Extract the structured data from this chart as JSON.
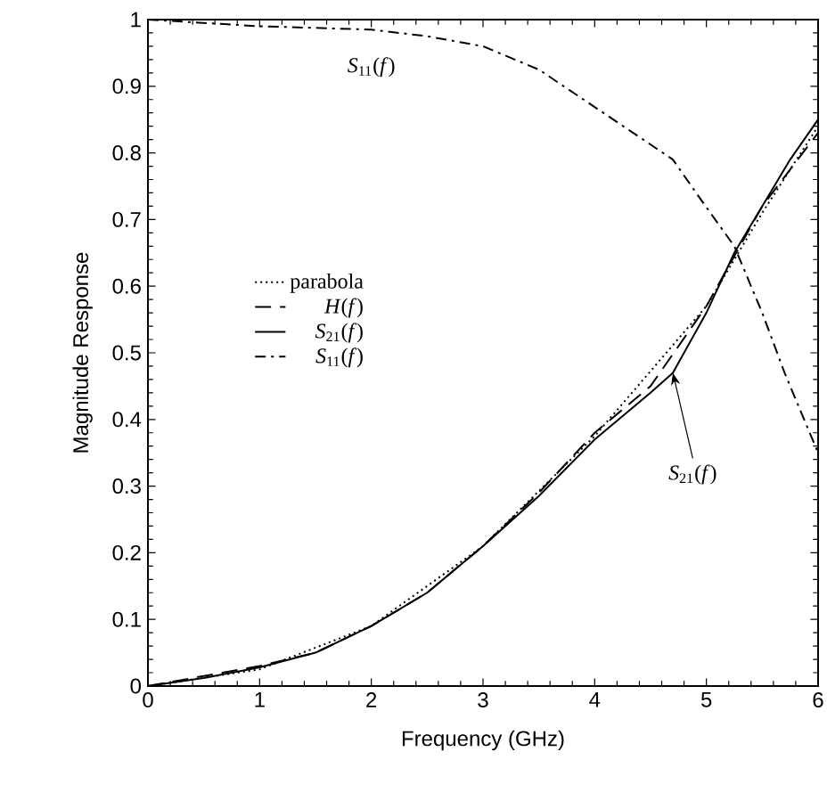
{
  "chart_data": {
    "type": "line",
    "xlabel": "Frequency (GHz)",
    "ylabel": "Magnitude Response",
    "xlim": [
      0,
      6
    ],
    "ylim": [
      0,
      1
    ],
    "xticks": [
      0,
      1,
      2,
      3,
      4,
      5,
      6
    ],
    "yticks": [
      0,
      0.1,
      0.2,
      0.3,
      0.4,
      0.5,
      0.6,
      0.7,
      0.8,
      0.9,
      1
    ],
    "legend": "left",
    "grid": false,
    "marker": "none",
    "series": [
      {
        "name": "parabola",
        "color": "#000000",
        "line_style": "dotted",
        "x": [
          0,
          1,
          2,
          3,
          4,
          5,
          5.5,
          6
        ],
        "values": [
          0,
          0.025,
          0.09,
          0.21,
          0.375,
          0.57,
          0.71,
          0.84
        ]
      },
      {
        "name": "*H*(*f*)",
        "color": "#000000",
        "line_style": "dashed",
        "x": [
          0,
          0.5,
          1,
          1.5,
          2,
          2.5,
          3,
          3.5,
          4,
          4.5,
          5,
          5.5,
          6
        ],
        "values": [
          0,
          0.015,
          0.03,
          0.05,
          0.09,
          0.14,
          0.21,
          0.29,
          0.38,
          0.45,
          0.57,
          0.72,
          0.83
        ]
      },
      {
        "name": "*S*$_{21}$(*f*)",
        "color": "#000000",
        "line_style": "solid",
        "x": [
          0,
          0.5,
          1,
          1.5,
          2,
          2.5,
          3,
          3.5,
          4,
          4.5,
          4.7,
          5,
          5.25,
          5.5,
          5.75,
          6
        ],
        "values": [
          0,
          0.012,
          0.028,
          0.05,
          0.09,
          0.14,
          0.21,
          0.285,
          0.37,
          0.44,
          0.47,
          0.56,
          0.65,
          0.72,
          0.79,
          0.85
        ]
      },
      {
        "name": "*S*$_{11}$(*f*)",
        "color": "#000000",
        "line_style": "dashdot",
        "x": [
          0,
          1,
          2,
          2.5,
          3,
          3.5,
          3.9,
          4.3,
          4.7,
          4.95,
          5.25,
          5.5,
          5.7,
          5.85,
          6
        ],
        "values": [
          1.0,
          0.99,
          0.985,
          0.975,
          0.96,
          0.925,
          0.88,
          0.835,
          0.79,
          0.73,
          0.66,
          0.56,
          0.47,
          0.41,
          0.35
        ]
      }
    ],
    "annotations": [
      {
        "text": "*S*$_{11}$(*f*)",
        "x": 2.0,
        "y": 0.985
      },
      {
        "text": "*S*$_{21}$(*f*)",
        "x": 4.7,
        "y": 0.47
      }
    ]
  }
}
